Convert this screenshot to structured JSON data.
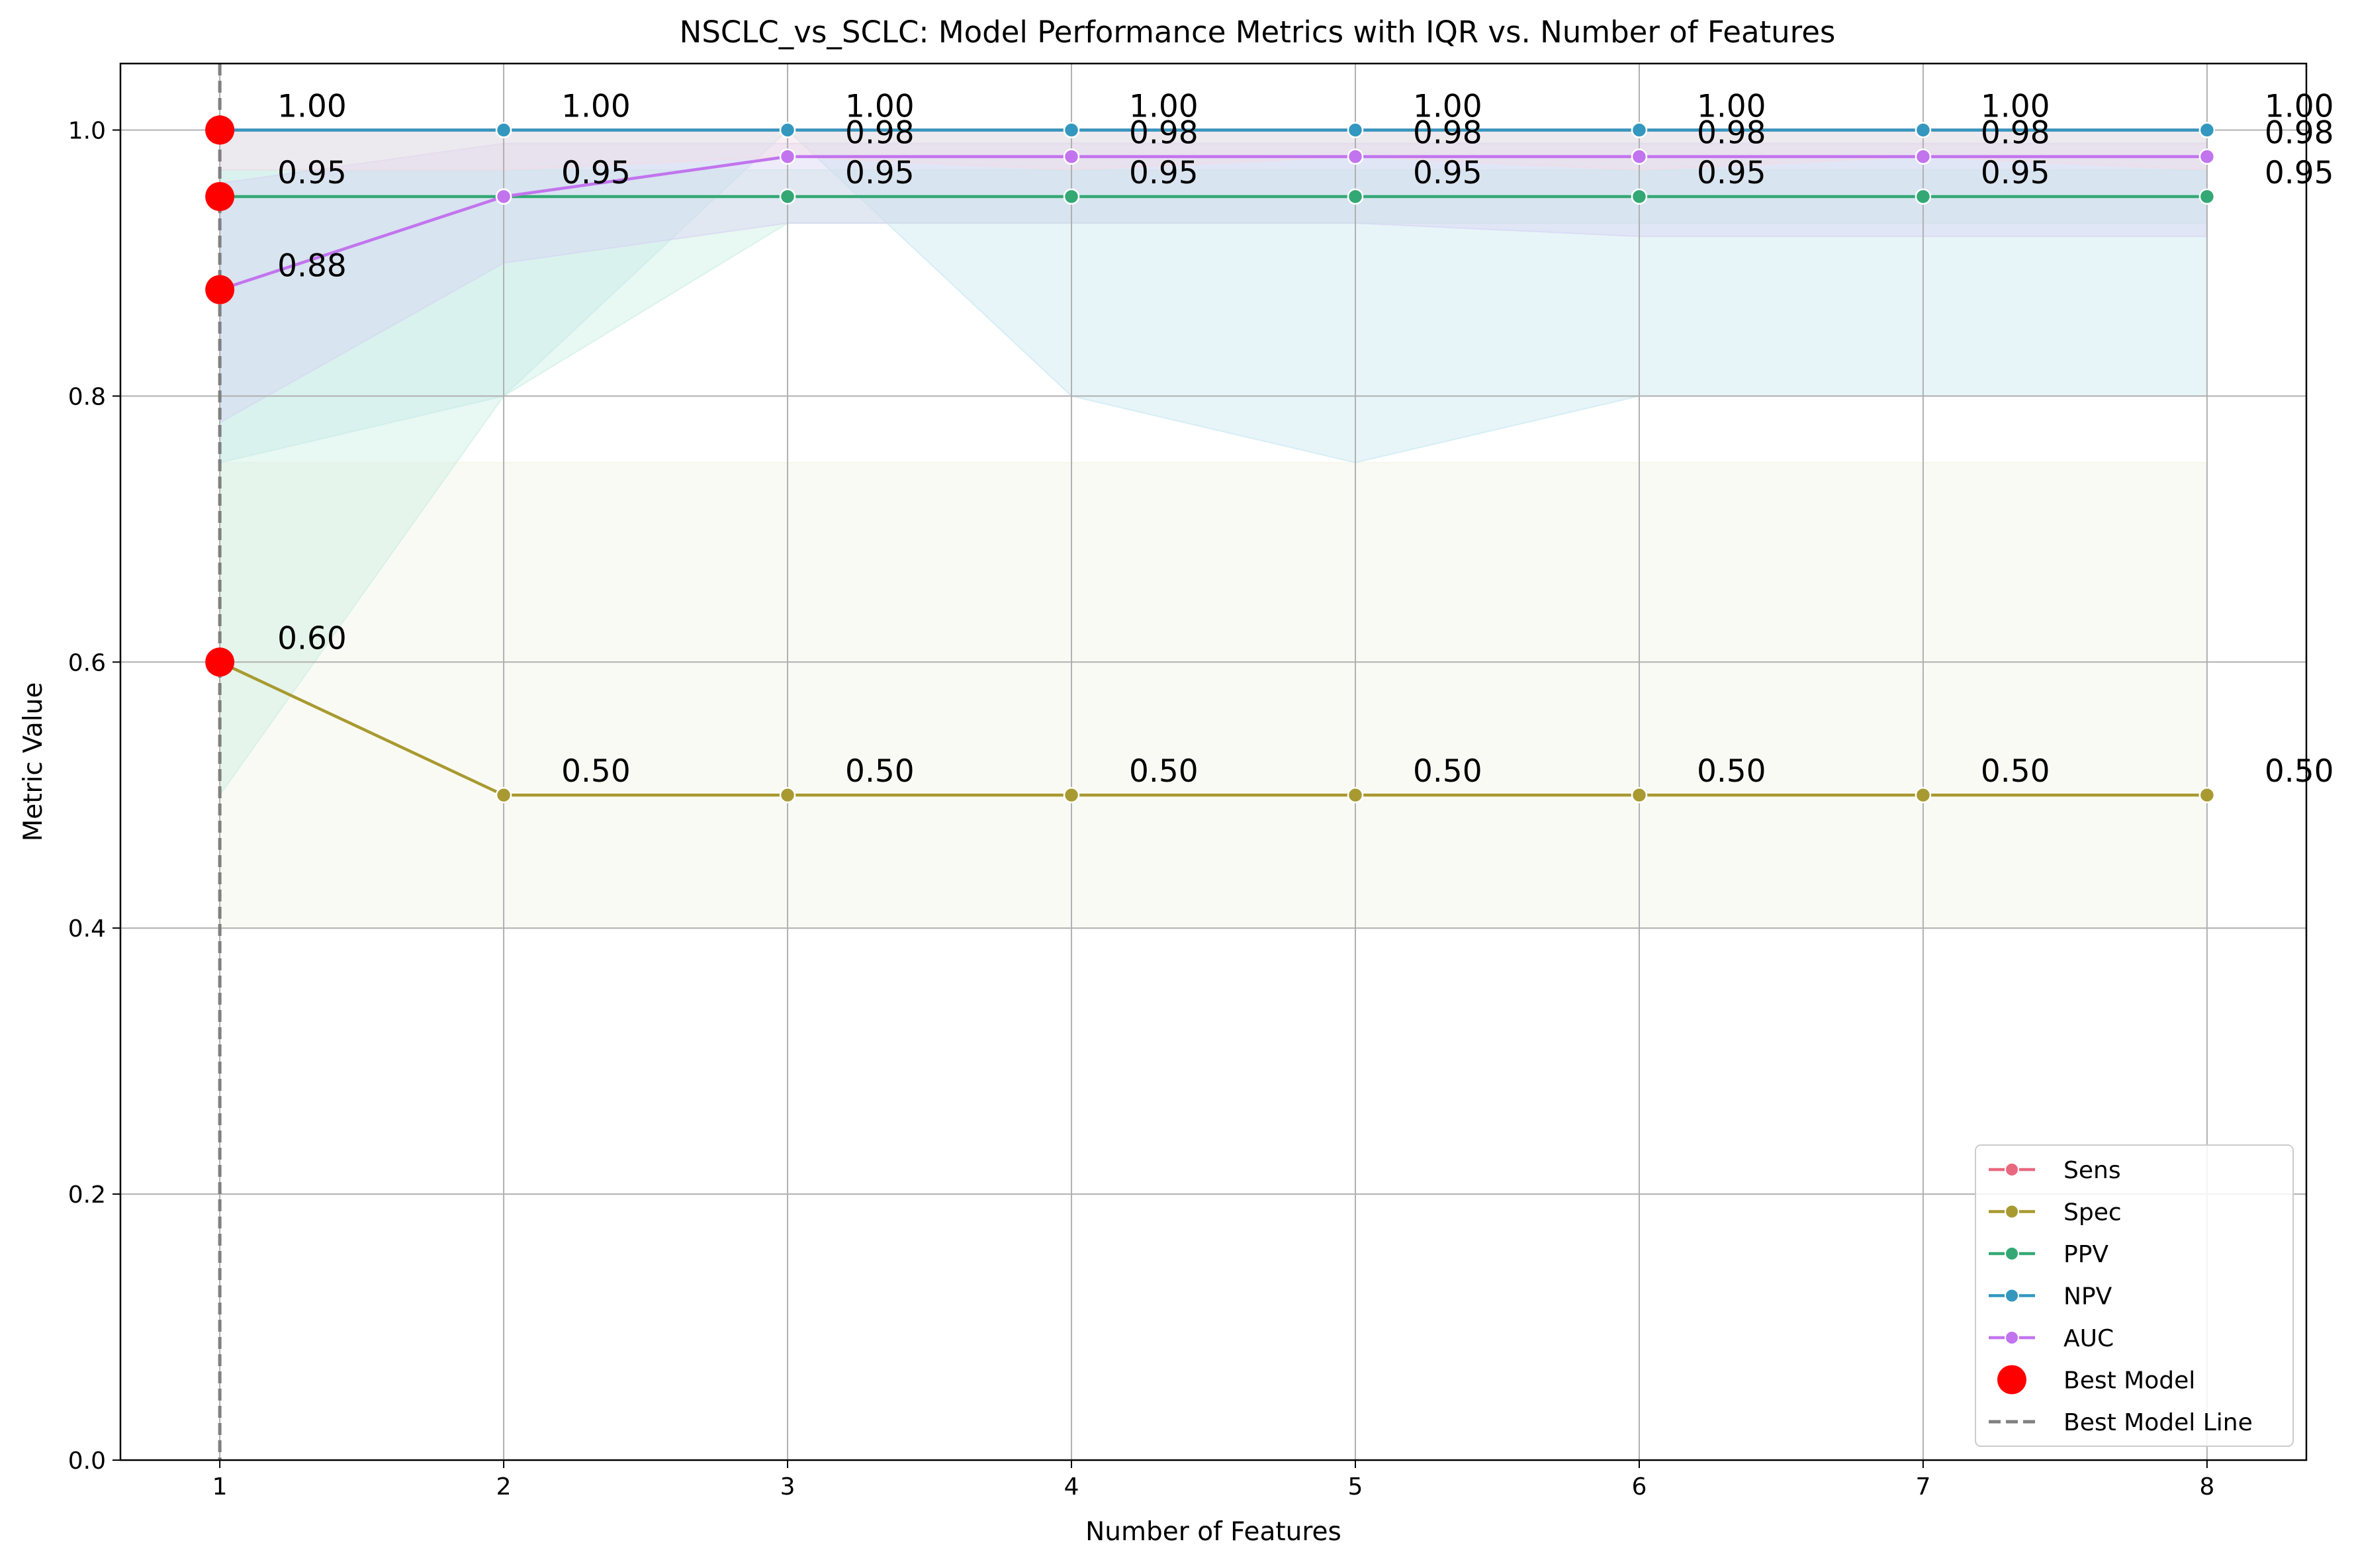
{
  "chart_data": {
    "type": "line",
    "title": "NSCLC_vs_SCLC: Model Performance Metrics with IQR vs. Number of Features",
    "xlabel": "Number of Features",
    "ylabel": "Metric Value",
    "x": [
      1,
      2,
      3,
      4,
      5,
      6,
      7,
      8
    ],
    "xlim": [
      0.65,
      8.35
    ],
    "ylim": [
      0.0,
      1.05
    ],
    "xticks": [
      "1",
      "2",
      "3",
      "4",
      "5",
      "6",
      "7",
      "8"
    ],
    "yticks": [
      "0.0",
      "0.2",
      "0.4",
      "0.6",
      "0.8",
      "1.0"
    ],
    "grid": true,
    "legend_position": "lower-right",
    "series": [
      {
        "name": "Sens",
        "color": "#e8697f",
        "values": [
          1.0,
          1.0,
          1.0,
          1.0,
          1.0,
          1.0,
          1.0,
          1.0
        ],
        "iqr_low": [
          0.97,
          0.97,
          0.98,
          0.97,
          0.98,
          0.97,
          0.98,
          0.97
        ],
        "iqr_high": [
          1.0,
          1.0,
          1.0,
          1.0,
          1.0,
          1.0,
          1.0,
          1.0
        ]
      },
      {
        "name": "Spec",
        "color": "#a89a30",
        "values": [
          0.6,
          0.5,
          0.5,
          0.5,
          0.5,
          0.5,
          0.5,
          0.5
        ],
        "iqr_low": [
          0.4,
          0.4,
          0.4,
          0.4,
          0.4,
          0.4,
          0.4,
          0.4
        ],
        "iqr_high": [
          0.75,
          0.75,
          0.75,
          0.75,
          0.75,
          0.75,
          0.75,
          0.75
        ]
      },
      {
        "name": "PPV",
        "color": "#33a874",
        "values": [
          0.95,
          0.95,
          0.95,
          0.95,
          0.95,
          0.95,
          0.95,
          0.95
        ],
        "iqr_low": [
          0.5,
          0.8,
          0.93,
          0.93,
          0.93,
          0.93,
          0.93,
          0.93
        ],
        "iqr_high": [
          0.97,
          0.97,
          0.97,
          0.97,
          0.97,
          0.97,
          0.97,
          0.97
        ]
      },
      {
        "name": "NPV",
        "color": "#3497bf",
        "values": [
          1.0,
          1.0,
          1.0,
          1.0,
          1.0,
          1.0,
          1.0,
          1.0
        ],
        "iqr_low": [
          0.75,
          0.8,
          1.0,
          0.8,
          0.75,
          0.8,
          0.8,
          0.8
        ],
        "iqr_high": [
          1.0,
          1.0,
          1.0,
          1.0,
          1.0,
          1.0,
          1.0,
          1.0
        ]
      },
      {
        "name": "AUC",
        "color": "#c274ee",
        "values": [
          0.88,
          0.95,
          0.98,
          0.98,
          0.98,
          0.98,
          0.98,
          0.98
        ],
        "iqr_low": [
          0.78,
          0.9,
          0.93,
          0.93,
          0.93,
          0.92,
          0.92,
          0.92
        ],
        "iqr_high": [
          0.96,
          0.99,
          0.99,
          0.99,
          0.99,
          0.99,
          0.99,
          0.99
        ]
      }
    ],
    "data_labels": [
      {
        "series": "NPV",
        "values": [
          "1.00",
          "1.00",
          "1.00",
          "1.00",
          "1.00",
          "1.00",
          "1.00",
          "1.00"
        ]
      },
      {
        "series": "AUC",
        "values": [
          "0.88",
          "0.95",
          "0.98",
          "0.98",
          "0.98",
          "0.98",
          "0.98",
          "0.98"
        ]
      },
      {
        "series": "PPV",
        "values": [
          "0.95",
          "0.95",
          "0.95",
          "0.95",
          "0.95",
          "0.95",
          "0.95",
          "0.95"
        ]
      },
      {
        "series": "Spec",
        "values": [
          "0.60",
          "0.50",
          "0.50",
          "0.50",
          "0.50",
          "0.50",
          "0.50",
          "0.50"
        ]
      }
    ],
    "best_model": {
      "x": 1,
      "values": [
        1.0,
        0.6,
        0.95,
        1.0,
        0.88
      ],
      "color": "#ff0000",
      "line_color": "#808080",
      "legend_label": "Best Model",
      "line_legend_label": "Best Model Line"
    }
  }
}
